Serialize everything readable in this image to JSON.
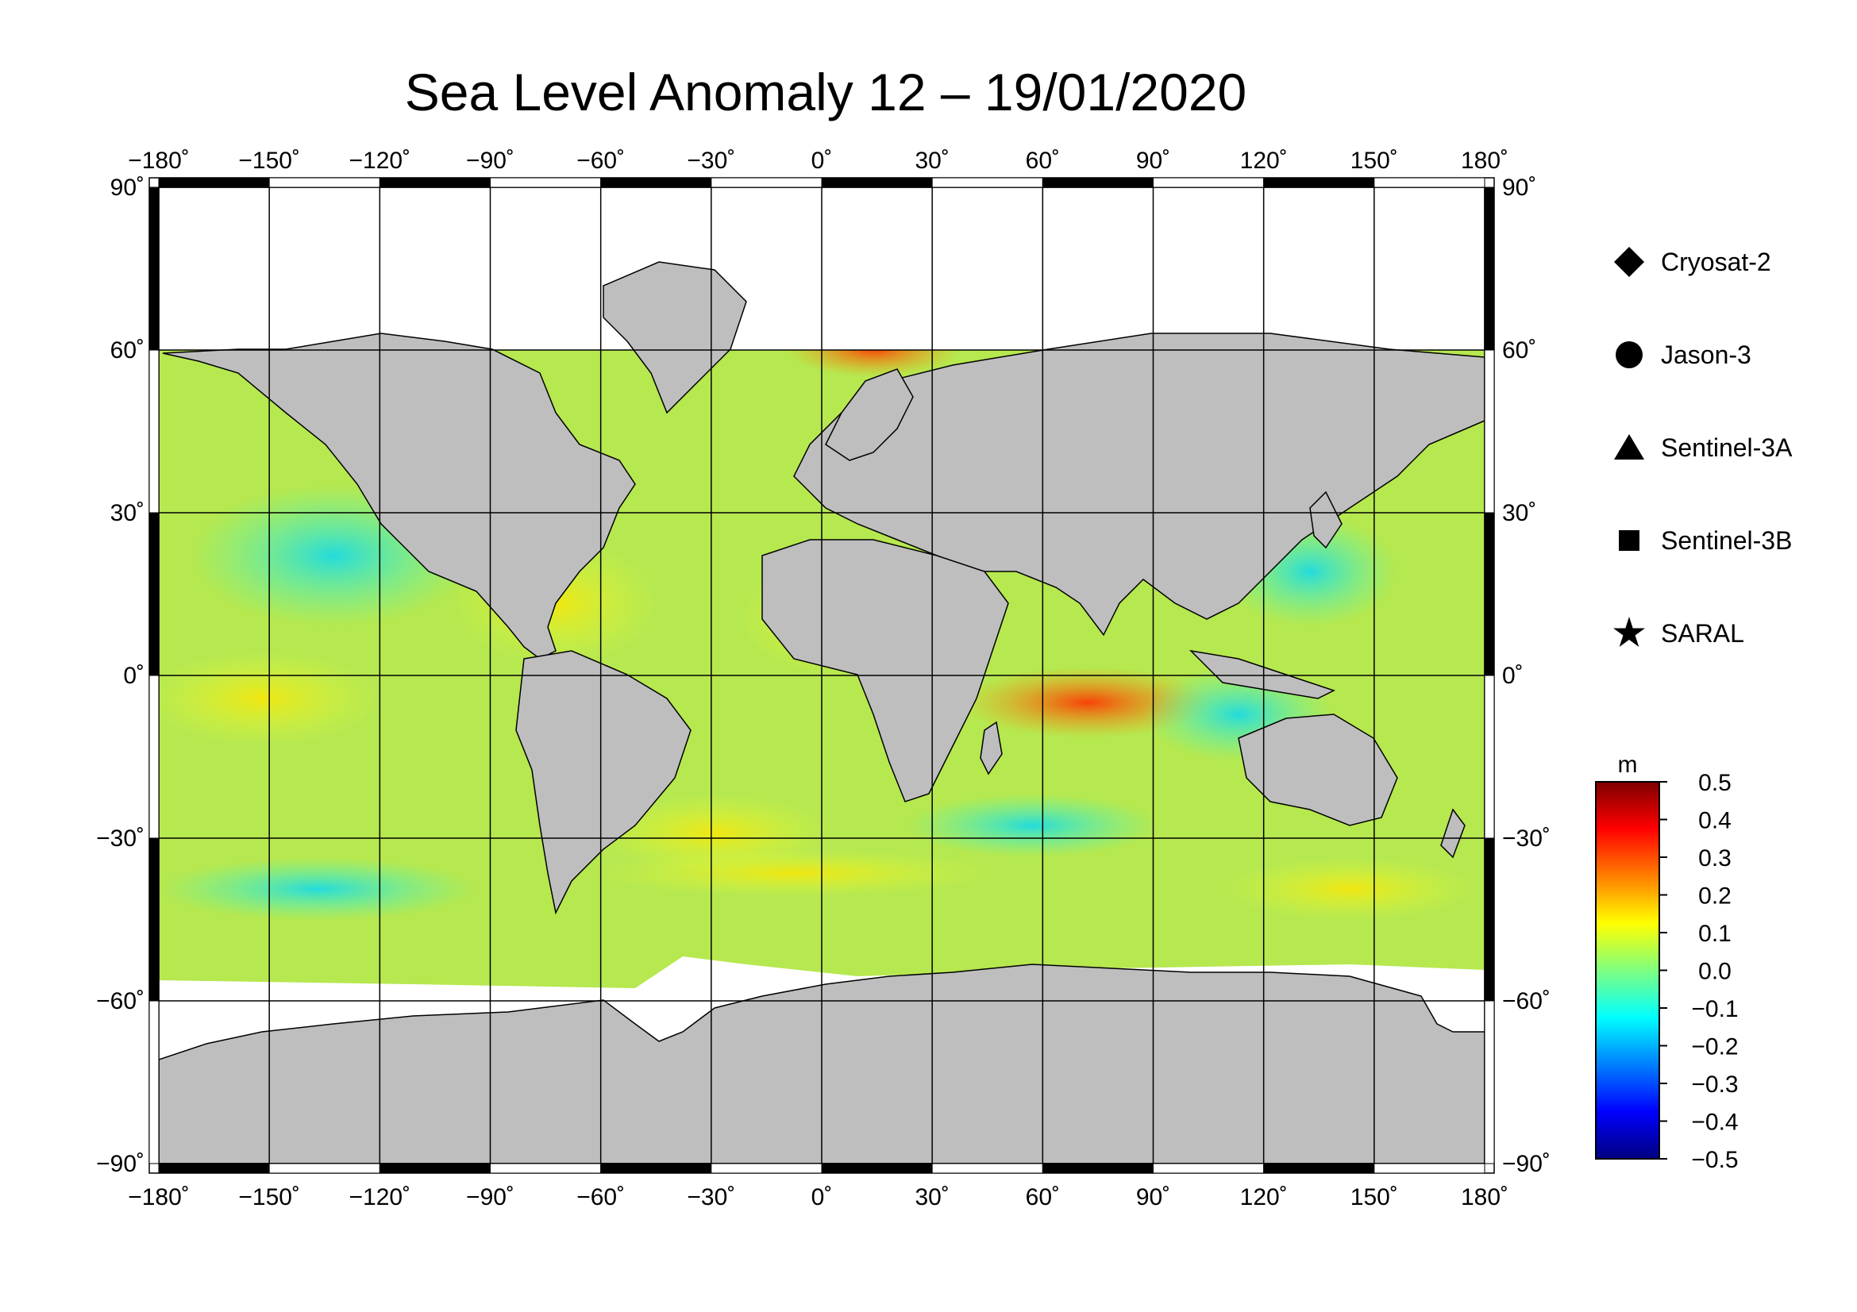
{
  "title": "Sea Level Anomaly 12 – 19/01/2020",
  "map": {
    "lon_range": [
      -180,
      180
    ],
    "lat_range": [
      -90,
      90
    ],
    "lon_ticks": [
      "−180˚",
      "−150˚",
      "−120˚",
      "−90˚",
      "−60˚",
      "−30˚",
      "0˚",
      "30˚",
      "60˚",
      "90˚",
      "120˚",
      "150˚",
      "180˚"
    ],
    "lat_ticks_left": [
      "90˚",
      "60˚",
      "30˚",
      "0˚",
      "−30˚",
      "−60˚",
      "−90˚"
    ],
    "lat_ticks_right": [
      "90˚",
      "60˚",
      "30˚",
      "0˚",
      "−30˚",
      "−60˚",
      "−90˚"
    ],
    "lon_values": [
      -180,
      -150,
      -120,
      -90,
      -60,
      -30,
      0,
      30,
      60,
      90,
      120,
      150,
      180
    ],
    "lat_values": [
      90,
      60,
      30,
      0,
      -30,
      -60,
      -90
    ],
    "land_color": "#bebebe",
    "ocean_fill_color": "#b6e84f"
  },
  "legend": {
    "items": [
      {
        "symbol": "diamond",
        "label": "Cryosat-2"
      },
      {
        "symbol": "circle",
        "label": "Jason-3"
      },
      {
        "symbol": "triangle",
        "label": "Sentinel-3A"
      },
      {
        "symbol": "square",
        "label": "Sentinel-3B"
      },
      {
        "symbol": "star",
        "label": "SARAL"
      }
    ]
  },
  "colorbar": {
    "unit": "m",
    "ticks": [
      "0.5",
      "0.4",
      "0.3",
      "0.2",
      "0.1",
      "0.0",
      "−0.1",
      "−0.2",
      "−0.3",
      "−0.4",
      "−0.5"
    ],
    "range": [
      -0.5,
      0.5
    ],
    "colors": [
      "#00007f",
      "#0000ff",
      "#007fff",
      "#00ffff",
      "#7fff7f",
      "#ffff00",
      "#ff7f00",
      "#ff0000",
      "#7f0000"
    ]
  }
}
